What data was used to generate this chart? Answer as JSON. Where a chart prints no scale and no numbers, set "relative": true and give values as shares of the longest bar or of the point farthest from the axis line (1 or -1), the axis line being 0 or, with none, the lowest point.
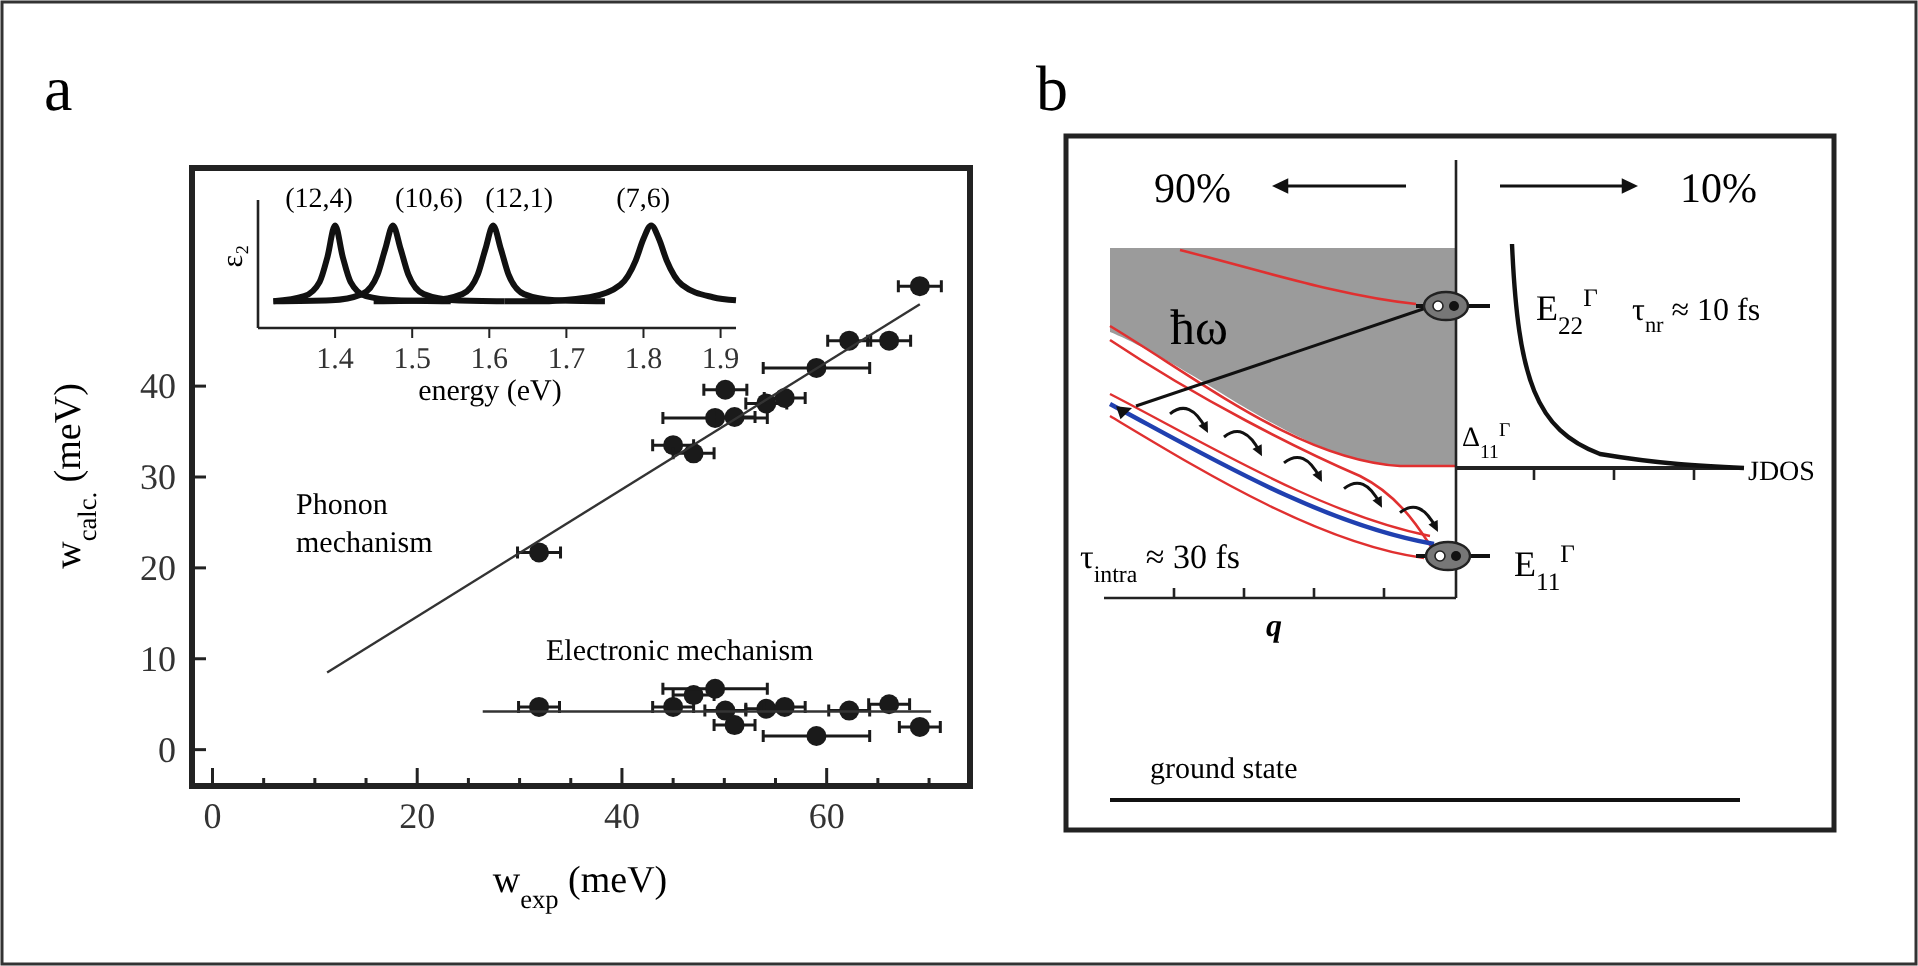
{
  "chart_data": [
    {
      "type": "scatter",
      "title": "a",
      "xlabel": "w$_{exp}$ (meV)",
      "ylabel": "w$_{calc.}$ (meV)",
      "xlim": [
        -2,
        74
      ],
      "ylim": [
        -4,
        64
      ],
      "marker": "circle",
      "xticks": [
        0,
        {
          "value": 5,
          "label": null
        },
        {
          "value": 10,
          "label": null
        },
        {
          "value": 15,
          "label": null
        },
        20,
        {
          "value": 25,
          "label": null
        },
        {
          "value": 30,
          "label": null
        },
        {
          "value": 35,
          "label": null
        },
        40,
        {
          "value": 45,
          "label": null
        },
        {
          "value": 50,
          "label": null
        },
        {
          "value": 55,
          "label": null
        },
        60,
        {
          "value": 65,
          "label": null
        },
        {
          "value": 70,
          "label": null
        }
      ],
      "yticks": [
        0,
        10,
        20,
        30,
        40
      ],
      "annotations": [
        "Phonon mechanism",
        "Electronic mechanism"
      ],
      "series": [
        {
          "type": "scatter",
          "color": "#1a1a1a",
          "x": [
            69.1,
            62.2,
            66.1,
            59.0,
            50.1,
            54.1,
            55.9,
            49.1,
            51.0,
            45.0,
            47.0,
            31.9
          ],
          "values": [
            51.0,
            45.0,
            45.0,
            42.0,
            39.6,
            38.1,
            38.7,
            36.5,
            36.6,
            33.5,
            32.6,
            21.7
          ],
          "xerrors": [
            2.1,
            2.1,
            2.1,
            5.2,
            2.1,
            2,
            2,
            5.1,
            2,
            2,
            2,
            2.1
          ]
        },
        {
          "type": "scatter",
          "color": "#1a1a1a",
          "x": [
            31.9,
            45.0,
            47.0,
            49.1,
            50.1,
            51.0,
            54.1,
            55.9,
            59.0,
            62.2,
            66.1,
            69.1
          ],
          "values": [
            4.7,
            4.7,
            6.0,
            6.7,
            4.3,
            2.7,
            4.5,
            4.7,
            1.5,
            4.3,
            5.0,
            2.5
          ],
          "xerrors": [
            2,
            2,
            2,
            5.1,
            2,
            2,
            2,
            2,
            5.2,
            2,
            2,
            2
          ]
        },
        {
          "type": "line",
          "color": "#333333",
          "marker": "none",
          "x": [
            11.2,
            69.1
          ],
          "values": [
            8.5,
            49.0
          ]
        },
        {
          "type": "line",
          "color": "#333333",
          "marker": "none",
          "x": [
            26.4,
            70.2
          ],
          "values": [
            4.2,
            4.2
          ]
        }
      ]
    },
    {
      "type": "line",
      "relative": true,
      "xlabel": "energy (eV)",
      "ylabel": "ε₂",
      "xlim": [
        1.3,
        1.92
      ],
      "xticks": [
        1.4,
        1.5,
        1.6,
        1.7,
        1.8,
        1.9
      ],
      "annotations": [
        {
          "text": "(12,4)",
          "x": 1.4,
          "y": 1
        },
        {
          "text": "(10,6)",
          "x": 1.475,
          "y": 1
        },
        {
          "text": "(12,1)",
          "x": 1.605,
          "y": 1
        },
        {
          "text": "(7,6)",
          "x": 1.81,
          "y": 1
        }
      ],
      "series": [
        {
          "color": "#111111",
          "x": [
            1.32,
            1.36,
            1.38,
            1.39,
            1.4,
            1.41,
            1.42,
            1.44,
            1.48,
            1.55
          ],
          "values": [
            0.26,
            0.31,
            0.45,
            0.69,
            1.0,
            0.69,
            0.45,
            0.31,
            0.27,
            0.26
          ]
        },
        {
          "color": "#111111",
          "x": [
            1.32,
            1.395,
            1.435,
            1.455,
            1.465,
            1.475,
            1.485,
            1.495,
            1.515,
            1.555,
            1.62
          ],
          "values": [
            0.26,
            0.27,
            0.33,
            0.52,
            0.77,
            1.0,
            0.77,
            0.52,
            0.33,
            0.27,
            0.26
          ]
        },
        {
          "color": "#111111",
          "x": [
            1.45,
            1.525,
            1.565,
            1.585,
            1.595,
            1.605,
            1.615,
            1.625,
            1.645,
            1.685,
            1.75
          ],
          "values": [
            0.26,
            0.27,
            0.33,
            0.52,
            0.77,
            1.0,
            0.77,
            0.52,
            0.33,
            0.27,
            0.26
          ]
        },
        {
          "color": "#111111",
          "x": [
            1.62,
            1.66,
            1.73,
            1.77,
            1.79,
            1.8,
            1.81,
            1.82,
            1.83,
            1.85,
            1.89,
            1.92
          ],
          "values": [
            0.26,
            0.26,
            0.3,
            0.42,
            0.66,
            0.87,
            1.0,
            0.87,
            0.66,
            0.42,
            0.3,
            0.27
          ]
        }
      ]
    },
    {
      "type": "other",
      "title": "b",
      "annotations": [
        "90%",
        "10%",
        "ħω",
        "E$_{22}$$^{Γ}$",
        "τ$_{nr}$ ≈ 10 fs",
        "Δ$_{11}$$^{Γ}$",
        "JDOS",
        "τ$_{intra}$ ≈ 30 fs",
        "E$_{11}$$^{Γ}$",
        "q",
        "ground state"
      ]
    }
  ]
}
